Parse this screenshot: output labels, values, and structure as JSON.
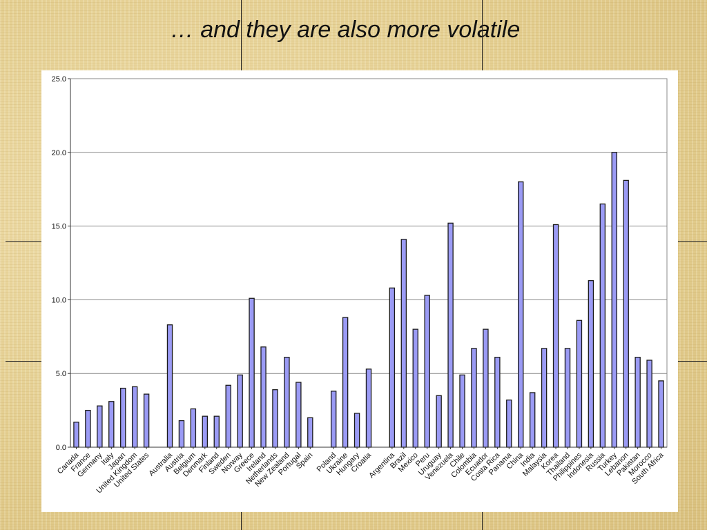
{
  "slide": {
    "title": "…  and they are also more volatile"
  },
  "chart_data": {
    "type": "bar",
    "title": "",
    "xlabel": "",
    "ylabel": "",
    "ylim": [
      0,
      25
    ],
    "y_ticks": [
      "0.0",
      "5.0",
      "10.0",
      "15.0",
      "20.0",
      "25.0"
    ],
    "grid": true,
    "bar_color": "#9b9bf5",
    "groups": [
      {
        "categories": [
          "Canada",
          "France",
          "Germany",
          "Italy",
          "Japan",
          "United Kingdom",
          "United States"
        ],
        "values": [
          1.7,
          2.5,
          2.8,
          3.1,
          4.0,
          4.1,
          3.6
        ]
      },
      {
        "categories": [
          "Australia",
          "Austria",
          "Belgium",
          "Denmark",
          "Finland",
          "Sweden",
          "Norway",
          "Greece",
          "Ireland",
          "Netherlands",
          "New Zealand",
          "Portugal",
          "Spain"
        ],
        "values": [
          8.3,
          1.8,
          2.6,
          2.1,
          2.1,
          4.2,
          4.9,
          10.1,
          6.8,
          3.9,
          6.1,
          4.4,
          2.0
        ]
      },
      {
        "categories": [
          "Poland",
          "Ukraine",
          "Hungary",
          "Croatia"
        ],
        "values": [
          3.8,
          8.8,
          2.3,
          5.3
        ]
      },
      {
        "categories": [
          "Argentina",
          "Brazil",
          "Mexico",
          "Peru",
          "Uruguay",
          "Venezuela",
          "Chile",
          "Colombia",
          "Ecuador",
          "Costa Rica",
          "Panama",
          "China",
          "India",
          "Malaysia",
          "Korea",
          "Thailand",
          "Philippines",
          "Indonesia",
          "Russia",
          "Turkey",
          "Lebanon",
          "Pakistan",
          "Morocco",
          "South Africa"
        ],
        "values": [
          10.8,
          14.1,
          8.0,
          10.3,
          3.5,
          15.2,
          4.9,
          6.7,
          8.0,
          6.1,
          3.2,
          18.0,
          3.7,
          6.7,
          15.1,
          6.7,
          8.6,
          11.3,
          16.5,
          20.0,
          18.1,
          6.1,
          5.9,
          4.5
        ]
      }
    ]
  }
}
